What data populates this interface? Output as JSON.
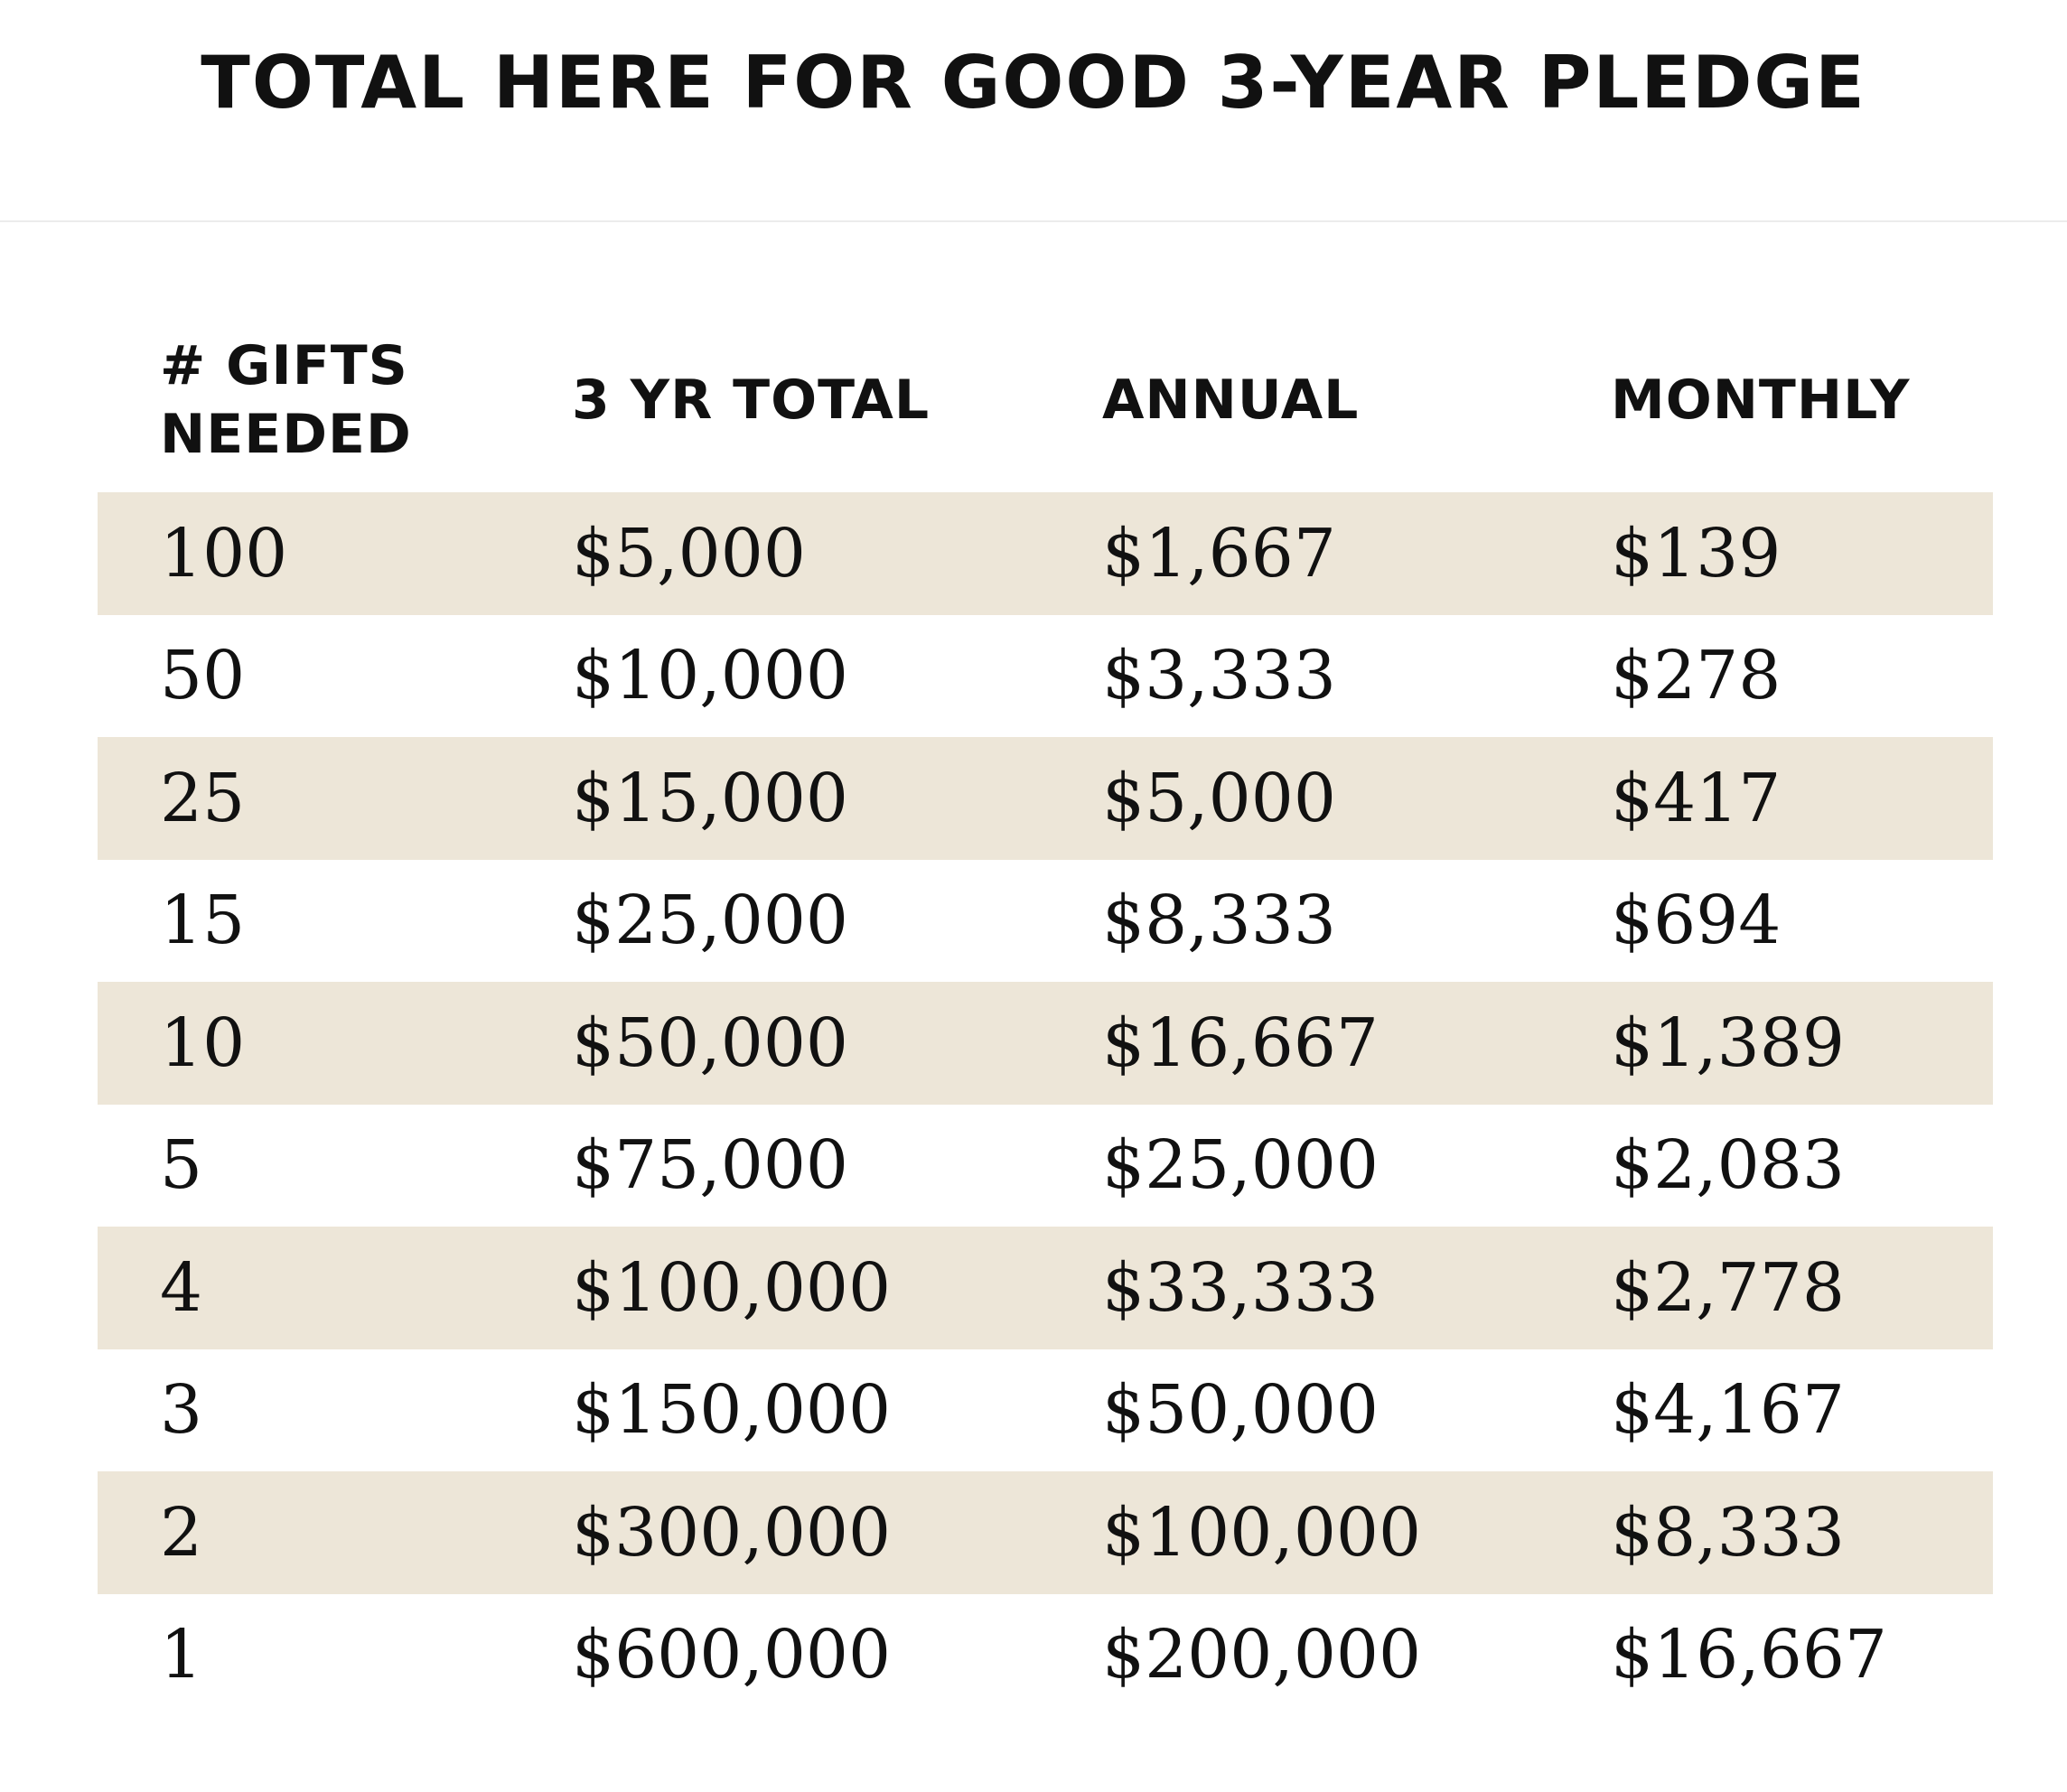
{
  "title": "TOTAL HERE FOR GOOD 3-YEAR PLEDGE",
  "colors": {
    "row_shade": "#ede6d8",
    "text": "#111111",
    "divider": "#ececec"
  },
  "table": {
    "headers": [
      "# GIFTS NEEDED",
      "3 YR TOTAL",
      "ANNUAL",
      "MONTHLY"
    ],
    "rows": [
      [
        "100",
        "$5,000",
        "$1,667",
        "$139"
      ],
      [
        "50",
        "$10,000",
        "$3,333",
        "$278"
      ],
      [
        "25",
        "$15,000",
        "$5,000",
        "$417"
      ],
      [
        "15",
        "$25,000",
        "$8,333",
        "$694"
      ],
      [
        "10",
        "$50,000",
        "$16,667",
        "$1,389"
      ],
      [
        "5",
        "$75,000",
        "$25,000",
        "$2,083"
      ],
      [
        "4",
        "$100,000",
        "$33,333",
        "$2,778"
      ],
      [
        "3",
        "$150,000",
        "$50,000",
        "$4,167"
      ],
      [
        "2",
        "$300,000",
        "$100,000",
        "$8,333"
      ],
      [
        "1",
        "$600,000",
        "$200,000",
        "$16,667"
      ]
    ]
  }
}
